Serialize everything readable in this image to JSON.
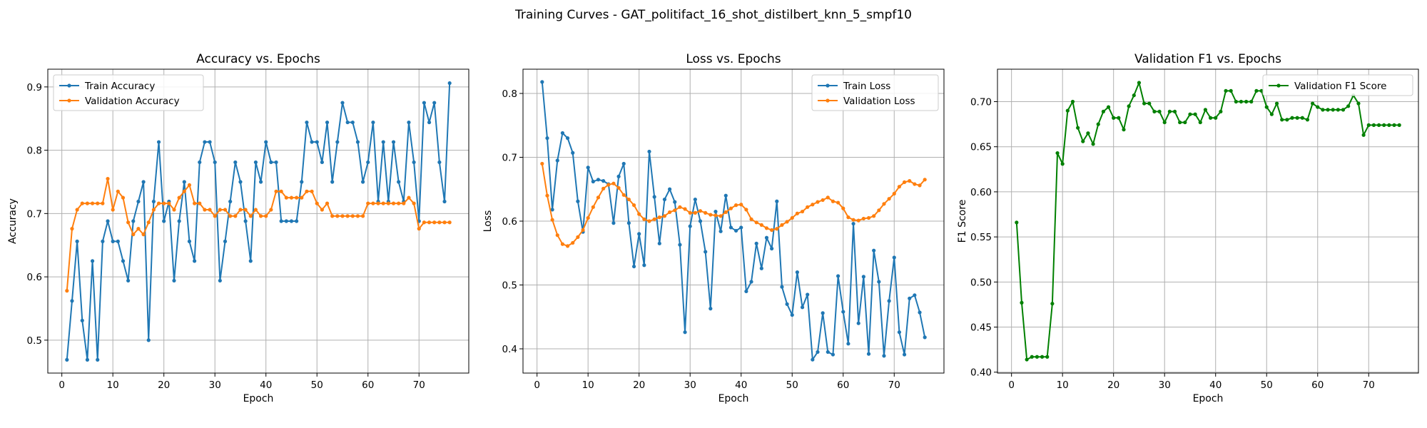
{
  "suptitle": "Training Curves - GAT_politifact_16_shot_distilbert_knn_5_smpf10",
  "colors": {
    "blue": "#1f77b4",
    "orange": "#ff7f0e",
    "green": "#008000"
  },
  "chart_data": [
    {
      "type": "line",
      "title": "Accuracy vs. Epochs",
      "xlabel": "Epoch",
      "ylabel": "Accuracy",
      "xlim": [
        -2.75,
        79.75
      ],
      "ylim": [
        0.448,
        0.928
      ],
      "xticks": [
        0,
        10,
        20,
        30,
        40,
        50,
        60,
        70
      ],
      "yticks": [
        0.5,
        0.6,
        0.7,
        0.8,
        0.9
      ],
      "grid": true,
      "legend": "upper-left",
      "series": [
        {
          "name": "Train Accuracy",
          "color": "#1f77b4",
          "values": [
            0.469,
            0.562,
            0.656,
            0.531,
            0.469,
            0.625,
            0.469,
            0.656,
            0.688,
            0.656,
            0.656,
            0.625,
            0.594,
            0.688,
            0.719,
            0.75,
            0.5,
            0.719,
            0.813,
            0.688,
            0.719,
            0.594,
            0.688,
            0.75,
            0.656,
            0.625,
            0.781,
            0.813,
            0.813,
            0.781,
            0.594,
            0.656,
            0.719,
            0.781,
            0.75,
            0.688,
            0.625,
            0.781,
            0.75,
            0.813,
            0.781,
            0.781,
            0.688,
            0.688,
            0.688,
            0.688,
            0.75,
            0.844,
            0.813,
            0.813,
            0.781,
            0.844,
            0.75,
            0.813,
            0.875,
            0.844,
            0.844,
            0.813,
            0.75,
            0.781,
            0.844,
            0.719,
            0.813,
            0.719,
            0.813,
            0.75,
            0.719,
            0.844,
            0.781,
            0.688,
            0.875,
            0.844,
            0.875,
            0.781,
            0.719,
            0.906
          ]
        },
        {
          "name": "Validation Accuracy",
          "color": "#ff7f0e",
          "values": [
            0.578,
            0.676,
            0.706,
            0.716,
            0.716,
            0.716,
            0.716,
            0.716,
            0.755,
            0.706,
            0.735,
            0.725,
            0.686,
            0.667,
            0.676,
            0.667,
            0.686,
            0.706,
            0.716,
            0.716,
            0.716,
            0.706,
            0.725,
            0.735,
            0.745,
            0.716,
            0.716,
            0.706,
            0.706,
            0.696,
            0.706,
            0.706,
            0.696,
            0.696,
            0.706,
            0.706,
            0.696,
            0.706,
            0.696,
            0.696,
            0.706,
            0.735,
            0.735,
            0.725,
            0.725,
            0.725,
            0.725,
            0.735,
            0.735,
            0.716,
            0.706,
            0.716,
            0.696,
            0.696,
            0.696,
            0.696,
            0.696,
            0.696,
            0.696,
            0.716,
            0.716,
            0.716,
            0.716,
            0.716,
            0.716,
            0.716,
            0.716,
            0.725,
            0.716,
            0.676,
            0.686,
            0.686,
            0.686,
            0.686,
            0.686,
            0.686
          ]
        }
      ]
    },
    {
      "type": "line",
      "title": "Loss vs. Epochs",
      "xlabel": "Epoch",
      "ylabel": "Loss",
      "xlim": [
        -2.75,
        79.75
      ],
      "ylim": [
        0.362,
        0.838
      ],
      "xticks": [
        0,
        10,
        20,
        30,
        40,
        50,
        60,
        70
      ],
      "yticks": [
        0.4,
        0.5,
        0.6,
        0.7,
        0.8
      ],
      "grid": true,
      "legend": "upper-right",
      "series": [
        {
          "name": "Train Loss",
          "color": "#1f77b4",
          "values": [
            0.818,
            0.73,
            0.618,
            0.695,
            0.738,
            0.73,
            0.707,
            0.631,
            0.583,
            0.684,
            0.662,
            0.665,
            0.663,
            0.658,
            0.597,
            0.67,
            0.69,
            0.597,
            0.529,
            0.58,
            0.531,
            0.709,
            0.638,
            0.565,
            0.634,
            0.65,
            0.63,
            0.563,
            0.426,
            0.592,
            0.634,
            0.6,
            0.552,
            0.463,
            0.615,
            0.584,
            0.64,
            0.59,
            0.585,
            0.59,
            0.49,
            0.505,
            0.565,
            0.526,
            0.574,
            0.557,
            0.631,
            0.497,
            0.47,
            0.453,
            0.52,
            0.465,
            0.485,
            0.383,
            0.395,
            0.456,
            0.395,
            0.391,
            0.514,
            0.458,
            0.408,
            0.596,
            0.44,
            0.513,
            0.392,
            0.554,
            0.505,
            0.389,
            0.475,
            0.543,
            0.426,
            0.391,
            0.479,
            0.484,
            0.457,
            0.418
          ]
        },
        {
          "name": "Validation Loss",
          "color": "#ff7f0e",
          "values": [
            0.69,
            0.64,
            0.602,
            0.578,
            0.564,
            0.561,
            0.566,
            0.575,
            0.586,
            0.605,
            0.622,
            0.637,
            0.651,
            0.657,
            0.659,
            0.652,
            0.641,
            0.634,
            0.625,
            0.611,
            0.603,
            0.6,
            0.603,
            0.606,
            0.608,
            0.614,
            0.617,
            0.622,
            0.619,
            0.613,
            0.613,
            0.616,
            0.613,
            0.61,
            0.609,
            0.608,
            0.614,
            0.62,
            0.625,
            0.626,
            0.618,
            0.603,
            0.598,
            0.594,
            0.589,
            0.586,
            0.588,
            0.594,
            0.599,
            0.605,
            0.612,
            0.615,
            0.622,
            0.626,
            0.63,
            0.633,
            0.637,
            0.631,
            0.629,
            0.62,
            0.606,
            0.602,
            0.601,
            0.604,
            0.605,
            0.608,
            0.617,
            0.627,
            0.635,
            0.643,
            0.654,
            0.661,
            0.663,
            0.658,
            0.656,
            0.665
          ]
        }
      ]
    },
    {
      "type": "line",
      "title": "Validation F1 vs. Epochs",
      "xlabel": "Epoch",
      "ylabel": "F1 Score",
      "xlim": [
        -2.75,
        79.75
      ],
      "ylim": [
        0.399,
        0.736
      ],
      "xticks": [
        0,
        10,
        20,
        30,
        40,
        50,
        60,
        70
      ],
      "yticks": [
        0.4,
        0.45,
        0.5,
        0.55,
        0.6,
        0.65,
        0.7
      ],
      "grid": true,
      "legend": "upper-right",
      "series": [
        {
          "name": "Validation F1 Score",
          "color": "#008000",
          "values": [
            0.566,
            0.477,
            0.414,
            0.417,
            0.417,
            0.417,
            0.417,
            0.476,
            0.643,
            0.631,
            0.69,
            0.7,
            0.671,
            0.656,
            0.665,
            0.653,
            0.675,
            0.689,
            0.694,
            0.682,
            0.682,
            0.669,
            0.695,
            0.707,
            0.721,
            0.698,
            0.698,
            0.689,
            0.689,
            0.677,
            0.689,
            0.689,
            0.677,
            0.677,
            0.686,
            0.686,
            0.677,
            0.691,
            0.682,
            0.682,
            0.689,
            0.712,
            0.712,
            0.7,
            0.7,
            0.7,
            0.7,
            0.712,
            0.712,
            0.694,
            0.686,
            0.698,
            0.68,
            0.68,
            0.682,
            0.682,
            0.682,
            0.68,
            0.698,
            0.694,
            0.691,
            0.691,
            0.691,
            0.691,
            0.691,
            0.695,
            0.707,
            0.698,
            0.663,
            0.674,
            0.674,
            0.674,
            0.674,
            0.674,
            0.674,
            0.674
          ]
        }
      ]
    }
  ]
}
